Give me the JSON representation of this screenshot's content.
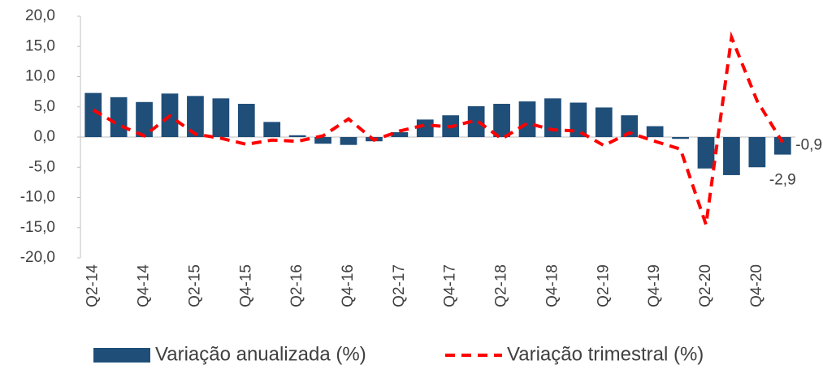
{
  "chart_data": {
    "type": "bar_line",
    "categories": [
      "Q2-14",
      null,
      "Q4-14",
      null,
      "Q2-15",
      null,
      "Q4-15",
      null,
      "Q2-16",
      null,
      "Q4-16",
      null,
      "Q2-17",
      null,
      "Q4-17",
      null,
      "Q2-18",
      null,
      "Q4-18",
      null,
      "Q2-19",
      null,
      "Q4-19",
      null,
      "Q2-20",
      null,
      "Q4-20",
      null
    ],
    "series": [
      {
        "name": "Variação anualizada (%)",
        "type": "bar",
        "color": "#1f4e79",
        "values": [
          7.3,
          6.6,
          5.8,
          7.2,
          6.8,
          6.4,
          5.5,
          2.5,
          0.3,
          -1.1,
          -1.3,
          -0.7,
          0.8,
          2.9,
          3.6,
          5.1,
          5.5,
          5.9,
          6.4,
          5.7,
          4.9,
          3.6,
          1.8,
          -0.3,
          -5.2,
          -6.3,
          -5.0,
          -2.9
        ],
        "value_labels": [
          null,
          null,
          null,
          null,
          null,
          null,
          null,
          null,
          null,
          null,
          null,
          null,
          null,
          null,
          null,
          null,
          null,
          null,
          null,
          null,
          null,
          null,
          null,
          null,
          null,
          null,
          null,
          "-2,9"
        ]
      },
      {
        "name": "Variação trimestral (%)",
        "type": "line",
        "color": "#ff0000",
        "values": [
          4.5,
          2.0,
          0.2,
          3.5,
          0.5,
          -0.2,
          -1.2,
          -0.5,
          -0.7,
          0.2,
          3.0,
          -0.5,
          1.0,
          2.0,
          1.7,
          2.8,
          -0.3,
          2.3,
          1.2,
          1.0,
          -1.4,
          0.7,
          -0.7,
          -2.0,
          -14.5,
          16.5,
          6.0,
          -0.9
        ],
        "value_labels": [
          null,
          null,
          null,
          null,
          null,
          null,
          null,
          null,
          null,
          null,
          null,
          null,
          null,
          null,
          null,
          null,
          null,
          null,
          null,
          null,
          null,
          null,
          null,
          null,
          null,
          null,
          null,
          "-0,9"
        ]
      }
    ],
    "ylim": [
      -20,
      20
    ],
    "yticks": [
      {
        "value": 20,
        "label": "20,0"
      },
      {
        "value": 15,
        "label": "15,0"
      },
      {
        "value": 10,
        "label": "10,0"
      },
      {
        "value": 5,
        "label": "5,0"
      },
      {
        "value": 0,
        "label": "0,0"
      },
      {
        "value": -5,
        "label": "-5,0"
      },
      {
        "value": -10,
        "label": "-10,0"
      },
      {
        "value": -15,
        "label": "-15,0"
      },
      {
        "value": -20,
        "label": "-20,0"
      }
    ],
    "legend": "bottom"
  }
}
